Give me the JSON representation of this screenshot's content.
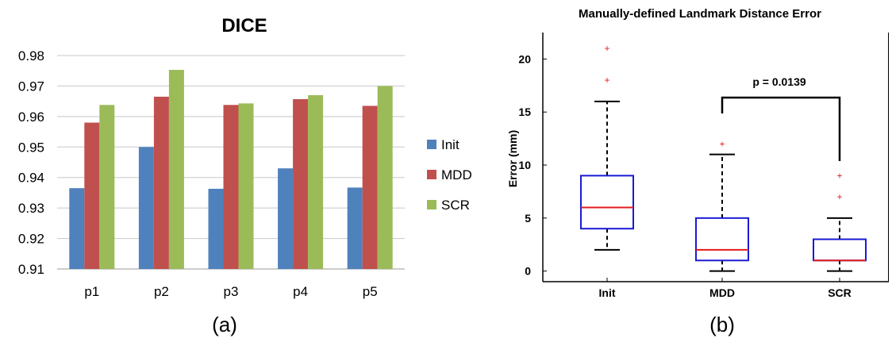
{
  "chart_data": [
    {
      "type": "bar",
      "title": "DICE",
      "categories": [
        "p1",
        "p2",
        "p3",
        "p4",
        "p5"
      ],
      "ylim": [
        0.91,
        0.98
      ],
      "yticks": [
        "0.91",
        "0.92",
        "0.93",
        "0.94",
        "0.95",
        "0.96",
        "0.97",
        "0.98"
      ],
      "grid": true,
      "legend_position": "right",
      "series": [
        {
          "name": "Init",
          "color": "#4f81bd",
          "values": [
            0.9365,
            0.95,
            0.9363,
            0.943,
            0.9367
          ]
        },
        {
          "name": "MDD",
          "color": "#c0504d",
          "values": [
            0.958,
            0.9665,
            0.9638,
            0.9657,
            0.9635
          ]
        },
        {
          "name": "SCR",
          "color": "#9bbb59",
          "values": [
            0.9638,
            0.9753,
            0.9643,
            0.967,
            0.97
          ]
        }
      ],
      "caption": "(a)"
    },
    {
      "type": "box",
      "title": "Manually-defined Landmark Distance Error",
      "ylabel": "Error  (mm)",
      "categories": [
        "Init",
        "MDD",
        "SCR"
      ],
      "ylim": [
        -1,
        22.5
      ],
      "yticks": [
        "0",
        "5",
        "10",
        "15",
        "20"
      ],
      "box_color": "#1a1ad6",
      "median_color": "#e31a1c",
      "outlier_color": "#e31a1c",
      "boxes": [
        {
          "name": "Init",
          "whisker_low": 2,
          "q1": 4,
          "median": 6,
          "q3": 9,
          "whisker_high": 16,
          "outliers": [
            18,
            21
          ]
        },
        {
          "name": "MDD",
          "whisker_low": 0,
          "q1": 1,
          "median": 2,
          "q3": 5,
          "whisker_high": 11,
          "outliers": [
            12
          ]
        },
        {
          "name": "SCR",
          "whisker_low": 0,
          "q1": 1,
          "median": 1,
          "q3": 3,
          "whisker_high": 5,
          "outliers": [
            7,
            9
          ]
        }
      ],
      "annotation": "p =  0.0139",
      "caption": "(b)"
    }
  ]
}
